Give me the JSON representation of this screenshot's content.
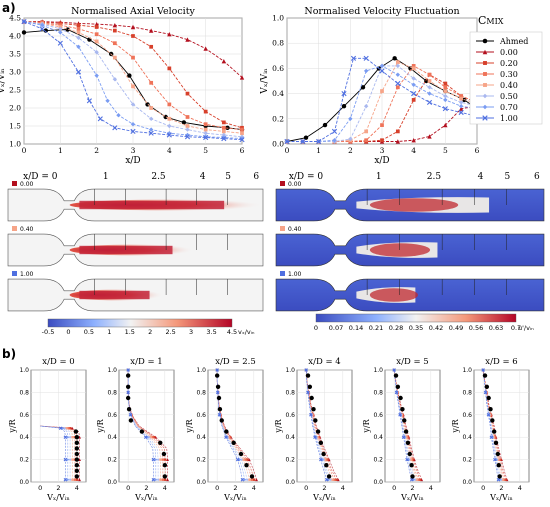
{
  "panel_labels": {
    "a": "a)",
    "b": "b)"
  },
  "colors": {
    "ahmed": "#000000",
    "series": [
      "#b30f1e",
      "#d7402b",
      "#ef7359",
      "#f6a488",
      "#a9b8ef",
      "#7a9cf2",
      "#4f6fe0"
    ],
    "contour_low": "#3b4cc0",
    "contour_mid": "#f7f7f7",
    "contour_high": "#b40426"
  },
  "legend": {
    "title": "C",
    "title_sub": "MIX",
    "entries": [
      "Ahmed",
      "0.00",
      "0.20",
      "0.30",
      "0.40",
      "0.50",
      "0.70",
      "1.00"
    ],
    "markers": [
      "circle",
      "triangle",
      "square",
      "square",
      "square",
      "diamond",
      "diamond",
      "x"
    ]
  },
  "contour_section": {
    "xd_labels_left": [
      "x/D = 0",
      "1",
      "2.5",
      "4",
      "5",
      "6"
    ],
    "xd_labels_right": [
      "x/D = 0",
      "1",
      "2.5",
      "4",
      "5",
      "6"
    ],
    "row_tags": [
      "0.00",
      "0.40",
      "1.00"
    ],
    "cbar_left": {
      "ticks": [
        "-0.5",
        "0",
        "0.5",
        "1",
        "1.5",
        "2",
        "2.5",
        "3",
        "3.5",
        "4.5"
      ],
      "unit": "vₓ/vᵢₙ"
    },
    "cbar_right": {
      "ticks": [
        "0",
        "0.07",
        "0.14",
        "0.21",
        "0.28",
        "0.35",
        "0.42",
        "0.49",
        "0.56",
        "0.63",
        "0.7"
      ],
      "unit": "u'/vᵢₙ"
    }
  },
  "chart_data": [
    {
      "type": "line",
      "title": "Normalised Axial Velocity",
      "xlabel": "x/D",
      "ylabel": "Vₓ/Vᵢₙ",
      "xlim": [
        0,
        6
      ],
      "ylim": [
        1.0,
        4.5
      ],
      "xticks": [
        "0",
        "1",
        "2",
        "3",
        "4",
        "5",
        "6"
      ],
      "yticks": [
        "1.0",
        "1.5",
        "2.0",
        "2.5",
        "3.0",
        "3.5",
        "4.0",
        "4.5"
      ],
      "grid": true,
      "series": [
        {
          "name": "Ahmed",
          "x": [
            0,
            0.6,
            1.2,
            1.8,
            2.4,
            2.9,
            3.4,
            3.9,
            4.4,
            5,
            5.6,
            6
          ],
          "y": [
            4.1,
            4.15,
            4.18,
            3.9,
            3.5,
            2.9,
            2.1,
            1.75,
            1.6,
            1.5,
            1.45,
            1.4
          ]
        },
        {
          "name": "0.00",
          "x": [
            0,
            0.5,
            1,
            1.5,
            2,
            2.5,
            3,
            3.5,
            4,
            4.5,
            5,
            5.5,
            6
          ],
          "y": [
            4.4,
            4.4,
            4.38,
            4.35,
            4.33,
            4.3,
            4.25,
            4.15,
            4.05,
            3.9,
            3.65,
            3.3,
            2.85
          ]
        },
        {
          "name": "0.20",
          "x": [
            0,
            0.5,
            1,
            1.5,
            2,
            2.5,
            3,
            3.5,
            4,
            4.5,
            5,
            5.5,
            6
          ],
          "y": [
            4.4,
            4.38,
            4.35,
            4.3,
            4.25,
            4.15,
            4.0,
            3.7,
            3.1,
            2.4,
            1.9,
            1.6,
            1.45
          ]
        },
        {
          "name": "0.30",
          "x": [
            0,
            0.5,
            1,
            1.5,
            2,
            2.5,
            3,
            3.5,
            4,
            4.5,
            5,
            5.5,
            6
          ],
          "y": [
            4.4,
            4.36,
            4.3,
            4.2,
            4.05,
            3.8,
            3.4,
            2.7,
            2.1,
            1.75,
            1.55,
            1.45,
            1.4
          ]
        },
        {
          "name": "0.40",
          "x": [
            0,
            0.5,
            1,
            1.5,
            2,
            2.5,
            3,
            3.5,
            4,
            4.5,
            5,
            5.5,
            6
          ],
          "y": [
            4.4,
            4.35,
            4.25,
            4.1,
            3.85,
            3.4,
            2.6,
            2.0,
            1.7,
            1.5,
            1.4,
            1.35,
            1.3
          ]
        },
        {
          "name": "0.50",
          "x": [
            0,
            0.5,
            1,
            1.5,
            2,
            2.5,
            3,
            3.5,
            4,
            4.5,
            5,
            5.5,
            6
          ],
          "y": [
            4.4,
            4.33,
            4.2,
            3.95,
            3.55,
            2.8,
            2.1,
            1.7,
            1.5,
            1.4,
            1.3,
            1.25,
            1.2
          ]
        },
        {
          "name": "0.70",
          "x": [
            0,
            0.5,
            1,
            1.5,
            2,
            2.3,
            2.6,
            3,
            3.5,
            4,
            4.5,
            5,
            5.5,
            6
          ],
          "y": [
            4.4,
            4.3,
            4.1,
            3.7,
            2.9,
            2.2,
            1.8,
            1.55,
            1.4,
            1.3,
            1.25,
            1.2,
            1.18,
            1.15
          ]
        },
        {
          "name": "1.00",
          "x": [
            0,
            0.5,
            1,
            1.5,
            1.8,
            2.1,
            2.5,
            3,
            3.5,
            4,
            4.5,
            5,
            5.5,
            6
          ],
          "y": [
            4.4,
            4.2,
            3.8,
            3.0,
            2.2,
            1.7,
            1.45,
            1.35,
            1.3,
            1.25,
            1.2,
            1.18,
            1.15,
            1.12
          ]
        }
      ]
    },
    {
      "type": "line",
      "title": "Normalised Velocity Fluctuation",
      "xlabel": "x/D",
      "ylabel": "Vₓ/Vᵢₙ",
      "xlim": [
        0,
        6
      ],
      "ylim": [
        0,
        1.0
      ],
      "xticks": [
        "0",
        "1",
        "2",
        "3",
        "4",
        "5",
        "6"
      ],
      "yticks": [
        "0.0",
        "0.2",
        "0.4",
        "0.6",
        "0.8",
        "1.0"
      ],
      "grid": true,
      "series": [
        {
          "name": "Ahmed",
          "x": [
            0,
            0.6,
            1.2,
            1.8,
            2.4,
            2.9,
            3.4,
            3.9,
            4.4,
            5,
            5.6,
            6
          ],
          "y": [
            0.02,
            0.05,
            0.15,
            0.3,
            0.45,
            0.6,
            0.68,
            0.6,
            0.5,
            0.42,
            0.35,
            0.28
          ]
        },
        {
          "name": "0.00",
          "x": [
            0,
            0.5,
            1,
            1.5,
            2,
            2.5,
            3,
            3.5,
            4,
            4.5,
            5,
            5.5,
            6
          ],
          "y": [
            0.02,
            0.02,
            0.02,
            0.02,
            0.02,
            0.02,
            0.02,
            0.02,
            0.03,
            0.06,
            0.15,
            0.28,
            0.3
          ]
        },
        {
          "name": "0.20",
          "x": [
            0,
            0.5,
            1,
            1.5,
            2,
            2.5,
            3,
            3.5,
            4,
            4.5,
            5,
            5.5,
            6
          ],
          "y": [
            0.02,
            0.02,
            0.02,
            0.02,
            0.02,
            0.02,
            0.03,
            0.1,
            0.35,
            0.55,
            0.48,
            0.38,
            0.33
          ]
        },
        {
          "name": "0.30",
          "x": [
            0,
            0.5,
            1,
            1.5,
            2,
            2.5,
            3,
            3.5,
            4,
            4.5,
            5,
            5.5,
            6
          ],
          "y": [
            0.02,
            0.02,
            0.02,
            0.02,
            0.02,
            0.03,
            0.15,
            0.45,
            0.62,
            0.55,
            0.45,
            0.38,
            0.33
          ]
        },
        {
          "name": "0.40",
          "x": [
            0,
            0.5,
            1,
            1.5,
            2,
            2.5,
            3,
            3.5,
            4,
            4.5,
            5,
            5.5,
            6
          ],
          "y": [
            0.02,
            0.02,
            0.02,
            0.02,
            0.03,
            0.1,
            0.42,
            0.65,
            0.6,
            0.5,
            0.42,
            0.36,
            0.32
          ]
        },
        {
          "name": "0.50",
          "x": [
            0,
            0.5,
            1,
            1.5,
            2,
            2.5,
            3,
            3.5,
            4,
            4.5,
            5,
            5.5,
            6
          ],
          "y": [
            0.02,
            0.02,
            0.02,
            0.02,
            0.04,
            0.3,
            0.62,
            0.62,
            0.52,
            0.45,
            0.38,
            0.33,
            0.3
          ]
        },
        {
          "name": "0.70",
          "x": [
            0,
            0.5,
            1,
            1.5,
            2,
            2.5,
            3,
            3.5,
            4,
            4.5,
            5,
            5.5,
            6
          ],
          "y": [
            0.02,
            0.02,
            0.02,
            0.03,
            0.2,
            0.58,
            0.62,
            0.55,
            0.47,
            0.4,
            0.35,
            0.3,
            0.28
          ]
        },
        {
          "name": "1.00",
          "x": [
            0,
            0.5,
            1,
            1.5,
            1.8,
            2.1,
            2.5,
            3,
            3.5,
            4,
            4.5,
            5,
            5.5,
            6
          ],
          "y": [
            0.02,
            0.02,
            0.02,
            0.1,
            0.4,
            0.68,
            0.68,
            0.58,
            0.48,
            0.4,
            0.33,
            0.28,
            0.25,
            0.22
          ]
        }
      ]
    },
    {
      "type": "line",
      "title_prefix": "x/D = ",
      "profiles": [
        "0",
        "1",
        "2.5",
        "4",
        "5",
        "6"
      ],
      "xlabel": "Vₓ/Vᵢₙ",
      "ylabel": "y/R",
      "ylim": [
        0,
        1.0
      ],
      "yticks": [
        "0.0",
        "0.2",
        "0.4",
        "0.6",
        "0.8",
        "1.0"
      ],
      "xlim": [
        -1,
        5
      ],
      "xticks": [
        "0",
        "2",
        "4"
      ],
      "grid": true,
      "series_by_profile": [
        {
          "Ahmed": {
            "y": [
              0.05,
              0.1,
              0.15,
              0.2,
              0.25,
              0.3,
              0.35,
              0.4,
              0.45
            ],
            "x": [
              4.0,
              4.0,
              4.0,
              4.0,
              4.0,
              4.0,
              4.0,
              4.0,
              3.9
            ]
          },
          "sim": {
            "y": [
              0.02,
              0.1,
              0.2,
              0.3,
              0.4,
              0.45,
              0.48,
              0.5
            ],
            "x": [
              4.3,
              4.3,
              4.3,
              4.3,
              4.3,
              4.2,
              3.5,
              0.0
            ]
          }
        },
        {
          "Ahmed": {
            "y": [
              0.05,
              0.15,
              0.25,
              0.35,
              0.45,
              0.55,
              0.65,
              0.75,
              0.85,
              0.95
            ],
            "x": [
              4.0,
              4.0,
              3.9,
              3.5,
              1.5,
              0.3,
              0.1,
              0.0,
              0.0,
              0.0
            ]
          },
          "sim": {
            "y": [
              0.02,
              0.1,
              0.2,
              0.3,
              0.4,
              0.5,
              0.6,
              0.7,
              0.8,
              0.9,
              1.0
            ],
            "x": [
              4.3,
              4.3,
              4.3,
              4.2,
              3.0,
              1.2,
              0.4,
              0.1,
              0.0,
              0.0,
              0.0
            ]
          }
        },
        {
          "Ahmed": {
            "y": [
              0.05,
              0.15,
              0.25,
              0.35,
              0.45,
              0.55,
              0.65,
              0.75,
              0.85,
              0.95
            ],
            "x": [
              3.8,
              3.2,
              2.6,
              1.8,
              1.0,
              0.5,
              0.3,
              0.2,
              0.1,
              0.0
            ]
          },
          "sim": {
            "y": [
              0.02,
              0.1,
              0.2,
              0.3,
              0.4,
              0.5,
              0.6,
              0.7,
              0.8,
              0.9,
              1.0
            ],
            "x": [
              4.3,
              4.0,
              3.5,
              2.5,
              1.5,
              0.8,
              0.4,
              0.2,
              0.1,
              0.0,
              0.0
            ]
          }
        },
        {
          "Ahmed": {
            "y": [
              0.05,
              0.15,
              0.25,
              0.35,
              0.45,
              0.55,
              0.65,
              0.75,
              0.85,
              0.95
            ],
            "x": [
              2.5,
              2.2,
              1.9,
              1.6,
              1.3,
              1.0,
              0.8,
              0.6,
              0.4,
              0.2
            ]
          },
          "sim": {
            "y": [
              0.02,
              0.1,
              0.2,
              0.3,
              0.4,
              0.5,
              0.6,
              0.7,
              0.8,
              0.9,
              1.0
            ],
            "x": [
              3.5,
              3.0,
              2.5,
              2.0,
              1.5,
              1.1,
              0.8,
              0.5,
              0.3,
              0.1,
              0.0
            ]
          }
        },
        {
          "Ahmed": {
            "y": [
              0.05,
              0.15,
              0.25,
              0.35,
              0.45,
              0.55,
              0.65,
              0.75,
              0.85,
              0.95
            ],
            "x": [
              2.0,
              1.9,
              1.7,
              1.5,
              1.3,
              1.1,
              0.9,
              0.7,
              0.4,
              0.2
            ]
          },
          "sim": {
            "y": [
              0.02,
              0.1,
              0.2,
              0.3,
              0.4,
              0.5,
              0.6,
              0.7,
              0.8,
              0.9,
              1.0
            ],
            "x": [
              3.0,
              2.6,
              2.2,
              1.9,
              1.6,
              1.3,
              1.0,
              0.7,
              0.4,
              0.2,
              0.0
            ]
          }
        },
        {
          "Ahmed": {
            "y": [
              0.05,
              0.15,
              0.25,
              0.35,
              0.45,
              0.55,
              0.65,
              0.75,
              0.85,
              0.95
            ],
            "x": [
              1.8,
              1.7,
              1.6,
              1.4,
              1.2,
              1.0,
              0.8,
              0.6,
              0.4,
              0.2
            ]
          },
          "sim": {
            "y": [
              0.02,
              0.1,
              0.2,
              0.3,
              0.4,
              0.5,
              0.6,
              0.7,
              0.8,
              0.9,
              1.0
            ],
            "x": [
              2.6,
              2.3,
              2.0,
              1.7,
              1.4,
              1.2,
              0.9,
              0.6,
              0.4,
              0.2,
              0.0
            ]
          }
        }
      ]
    }
  ]
}
